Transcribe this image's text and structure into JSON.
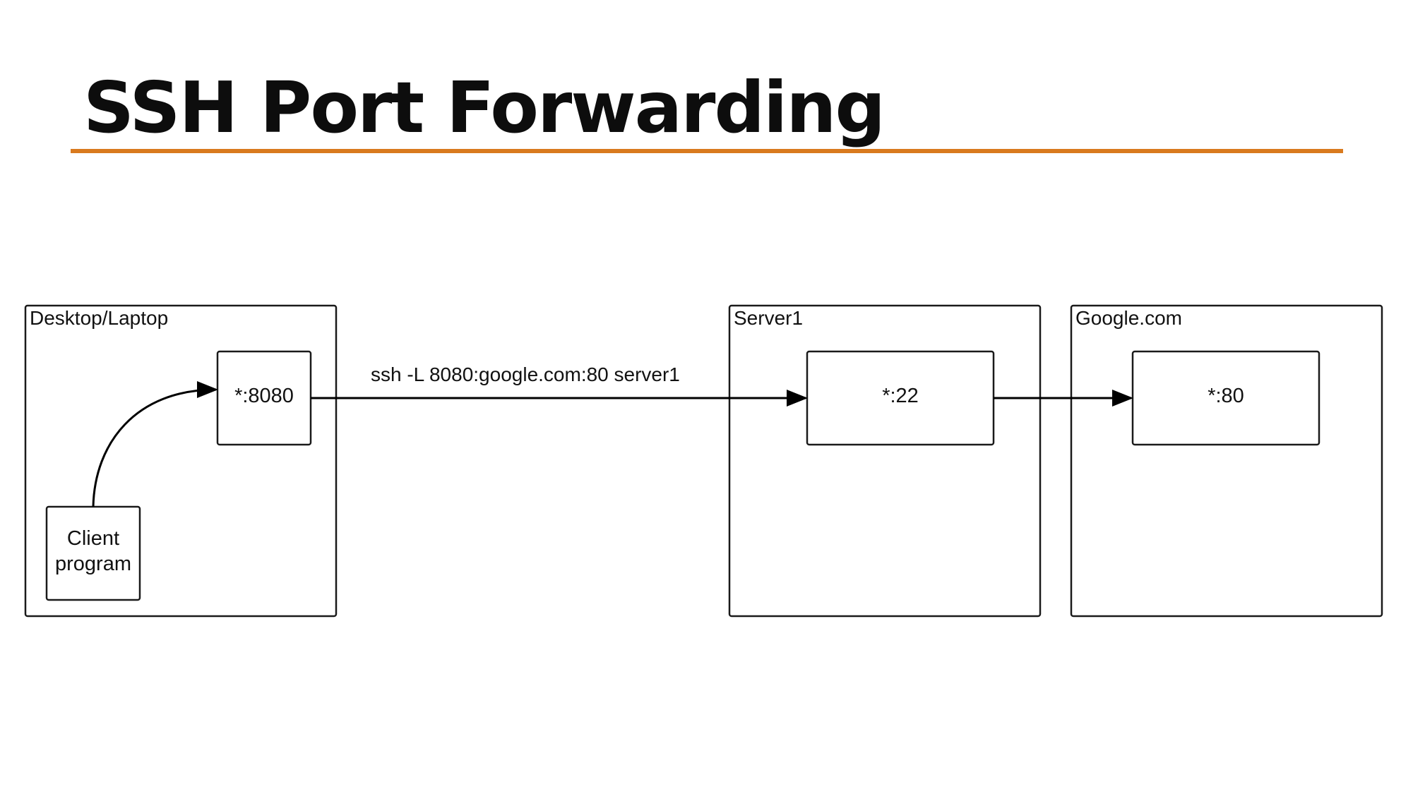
{
  "slide": {
    "title": "SSH Port Forwarding",
    "accent_color": "#d97a1e"
  },
  "diagram": {
    "containers": {
      "desktop": {
        "label": "Desktop/Laptop"
      },
      "server1": {
        "label": "Server1"
      },
      "google": {
        "label": "Google.com"
      }
    },
    "nodes": {
      "client_program": {
        "line1": "Client",
        "line2": "program"
      },
      "local_port": {
        "label": "*:8080"
      },
      "server_port": {
        "label": "*:22"
      },
      "google_port": {
        "label": "*:80"
      }
    },
    "edges": {
      "client_to_local": {
        "from": "Client program",
        "to": "*:8080"
      },
      "tunnel": {
        "from": "*:8080",
        "to": "*:22",
        "label": "ssh -L 8080:google.com:80 server1"
      },
      "server_to_google": {
        "from": "*:22",
        "to": "*:80"
      }
    }
  }
}
